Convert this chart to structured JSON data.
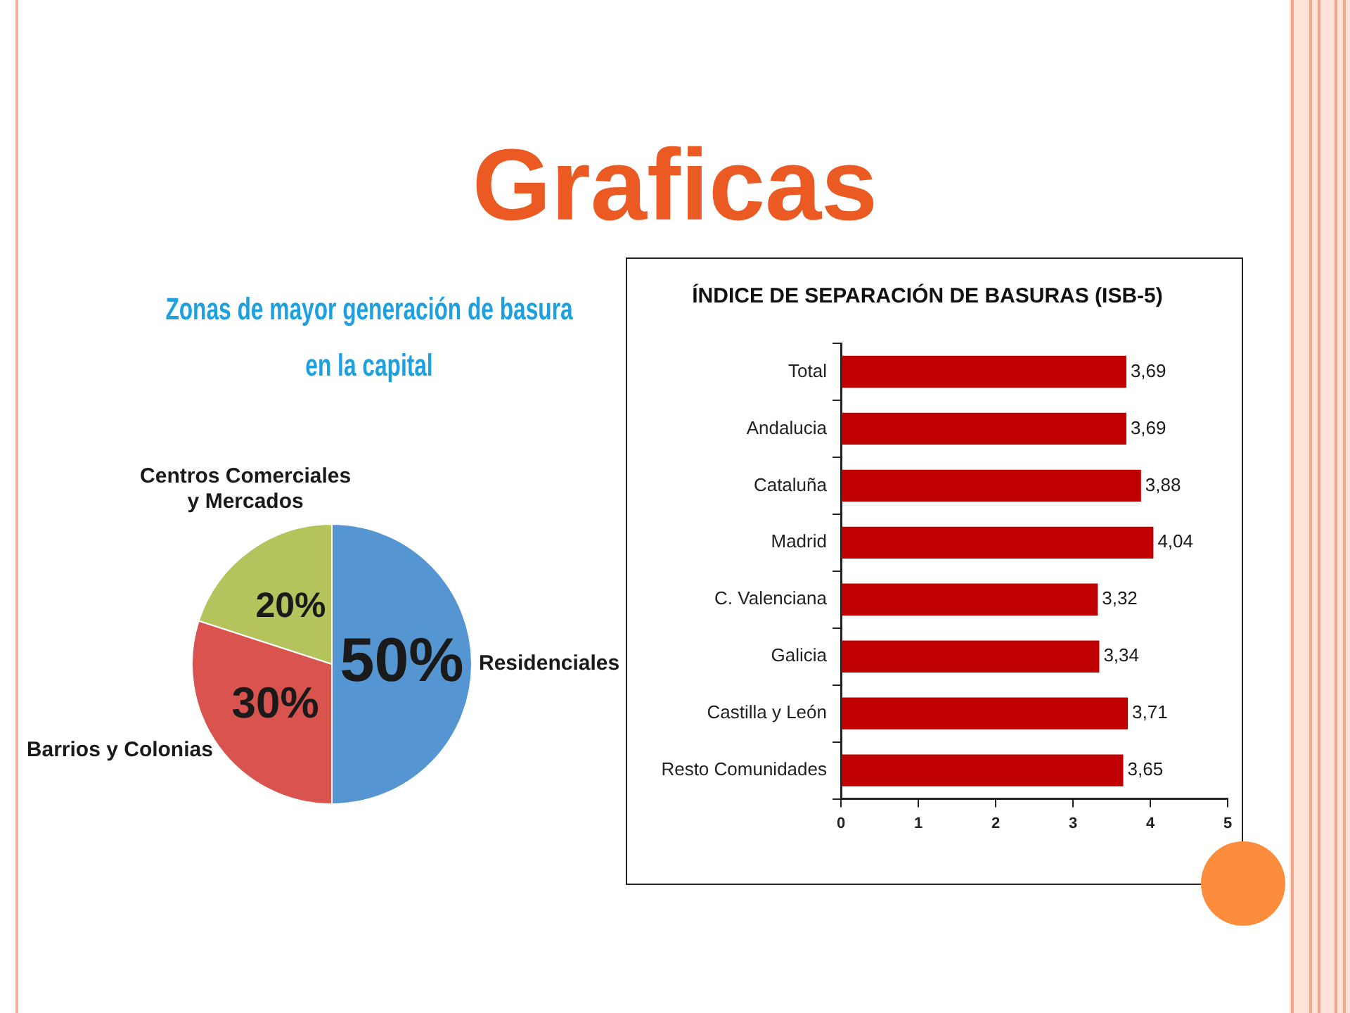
{
  "chart_data": [
    {
      "type": "other",
      "title": "Graficas"
    },
    {
      "type": "pie",
      "title": "Zonas de mayor generación de basura en la capital",
      "categories": [
        "Residenciales",
        "Barrios y Colonias",
        "Centros Comerciales y Mercados"
      ],
      "values": [
        50,
        30,
        20
      ],
      "colors": [
        "#5595d1",
        "#d9534f",
        "#b4c35b"
      ],
      "value_labels": [
        "50%",
        "30%",
        "20%"
      ]
    },
    {
      "type": "bar",
      "orientation": "horizontal",
      "title": "ÍNDICE DE SEPARACIÓN DE BASURAS (ISB-5)",
      "categories": [
        "Total",
        "Andalucia",
        "Cataluña",
        "Madrid",
        "C. Valenciana",
        "Galicia",
        "Castilla y León",
        "Resto Comunidades"
      ],
      "values": [
        3.69,
        3.69,
        3.88,
        4.04,
        3.32,
        3.34,
        3.71,
        3.65
      ],
      "value_labels": [
        "3,69",
        "3,69",
        "3,88",
        "4,04",
        "3,32",
        "3,34",
        "3,71",
        "3,65"
      ],
      "color": "#c00000",
      "xlim": [
        0,
        5
      ],
      "xticks": [
        0,
        1,
        2,
        3,
        4,
        5
      ],
      "grid": false
    }
  ]
}
